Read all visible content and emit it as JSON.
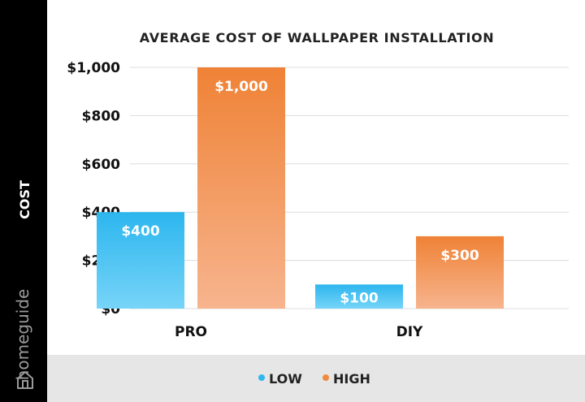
{
  "brand": {
    "name": "homeguide"
  },
  "chart_data": {
    "type": "bar",
    "title": "AVERAGE COST OF WALLPAPER INSTALLATION",
    "ylabel": "COST",
    "xlabel": "",
    "categories": [
      "PRO",
      "DIY"
    ],
    "series": [
      {
        "name": "LOW",
        "values": [
          400,
          100
        ],
        "labels": [
          "$400",
          "$100"
        ],
        "color": "#2eb8ee"
      },
      {
        "name": "HIGH",
        "values": [
          1000,
          300
        ],
        "labels": [
          "$1,000",
          "$300"
        ],
        "color": "#f08a3e"
      }
    ],
    "ylim": [
      0,
      1000
    ],
    "yticks": [
      0,
      200,
      400,
      600,
      800,
      1000
    ],
    "ytick_labels": [
      "$0",
      "$200",
      "$400",
      "$600",
      "$800",
      "$1,000"
    ],
    "grid": true,
    "legend_position": "bottom",
    "legend_marker": "•"
  }
}
